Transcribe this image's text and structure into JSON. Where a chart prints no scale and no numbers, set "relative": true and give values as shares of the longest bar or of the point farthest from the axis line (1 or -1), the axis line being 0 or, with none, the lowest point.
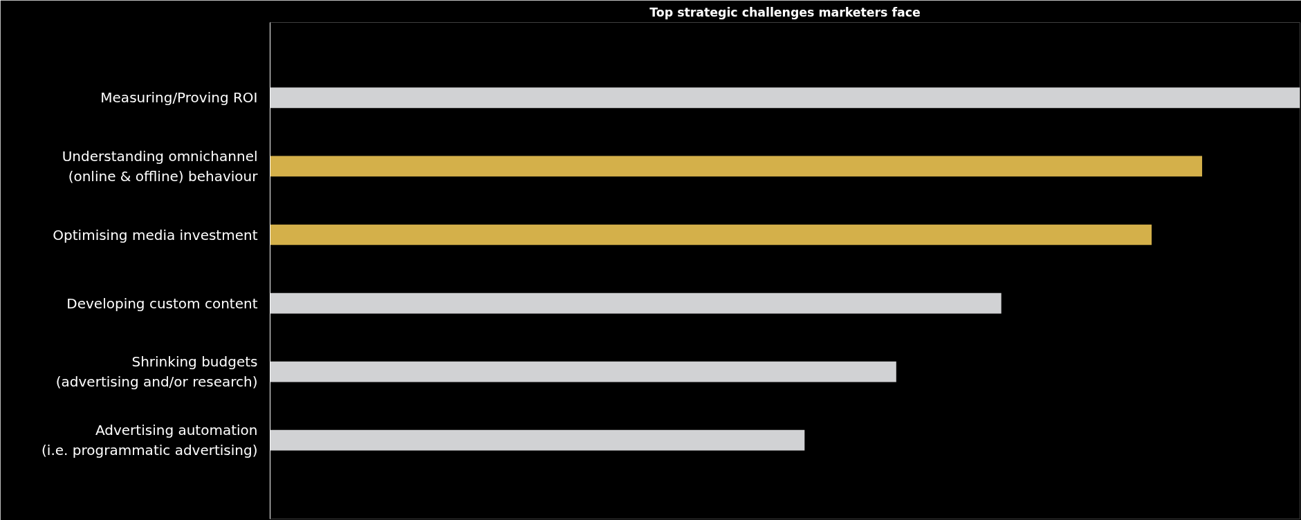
{
  "chart_data": {
    "type": "bar",
    "orientation": "horizontal",
    "relative": true,
    "title": "Top strategic challenges marketers face",
    "categories": [
      "Measuring/Proving ROI",
      "Understanding omnichannel\n(online & offline) behaviour",
      "Optimising media investment",
      "Developing custom content",
      "Shrinking budgets\n(advertising and/or research)",
      "Advertising automation\n(i.e. programmatic advertising)"
    ],
    "values": [
      1,
      0.905,
      0.856,
      0.71,
      0.608,
      0.519
    ],
    "colors": [
      "#d1d2d4",
      "#d4b04a",
      "#d4b04a",
      "#d1d2d4",
      "#d1d2d4",
      "#d1d2d4"
    ],
    "grid": false
  }
}
